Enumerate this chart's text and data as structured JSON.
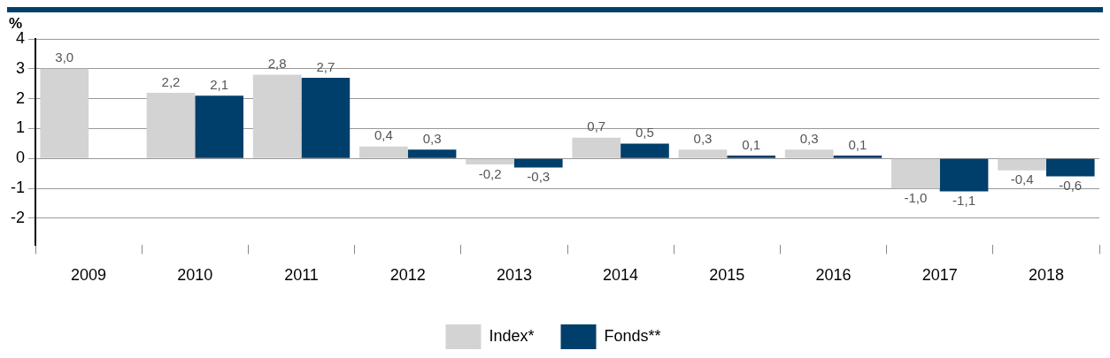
{
  "chart_data": {
    "type": "bar",
    "ylabel": "%",
    "categories": [
      "2009",
      "2010",
      "2011",
      "2012",
      "2013",
      "2014",
      "2015",
      "2016",
      "2017",
      "2018"
    ],
    "series": [
      {
        "name": "Index*",
        "color": "#d3d3d3",
        "values": [
          3.0,
          2.2,
          2.8,
          0.4,
          -0.2,
          0.7,
          0.3,
          0.3,
          -1.0,
          -0.4
        ],
        "value_labels": [
          "3,0",
          "2,2",
          "2,8",
          "0,4",
          "-0,2",
          "0,7",
          "0,3",
          "0,3",
          "-1,0",
          "-0,4"
        ]
      },
      {
        "name": "Fonds**",
        "color": "#003f6b",
        "values": [
          null,
          2.1,
          2.7,
          0.3,
          -0.3,
          0.5,
          0.1,
          0.1,
          -1.1,
          -0.6
        ],
        "value_labels": [
          null,
          "2,1",
          "2,7",
          "0,3",
          "-0,3",
          "0,5",
          "0,1",
          "0,1",
          "-1,1",
          "-0,6"
        ]
      }
    ],
    "ylim": [
      -2.9,
      4
    ],
    "yticks": [
      -2,
      -1,
      0,
      1,
      2,
      3,
      4
    ],
    "grid": "y",
    "legend": "bottom"
  }
}
